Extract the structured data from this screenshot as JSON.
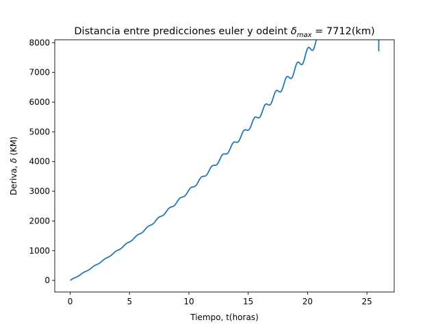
{
  "chart_data": {
    "type": "line",
    "title": "Distancia entre predicciones euler y odeint δmax = 7712(km)",
    "title_parts": {
      "prefix": "Distancia entre predicciones euler y odeint ",
      "symbol": "δ",
      "subscript": "max",
      "suffix": " = 7712(km)"
    },
    "xlabel": "Tiempo, t(horas)",
    "ylabel_parts": {
      "prefix": "Deriva, ",
      "symbol": "δ",
      "suffix": " (KM)"
    },
    "xlim": [
      -1.3,
      27.3
    ],
    "ylim": [
      -390,
      8100
    ],
    "xticks": [
      0,
      5,
      10,
      15,
      20,
      25
    ],
    "yticks": [
      0,
      1000,
      2000,
      3000,
      4000,
      5000,
      6000,
      7000,
      8000
    ],
    "grid": false,
    "series": [
      {
        "color": "#1f77b4",
        "x_range": [
          0,
          26
        ],
        "y_end": 7712,
        "trend": "quadratic",
        "oscillation_period": 0.9,
        "oscillation_amplitude_growth": "increasing with time"
      }
    ]
  }
}
